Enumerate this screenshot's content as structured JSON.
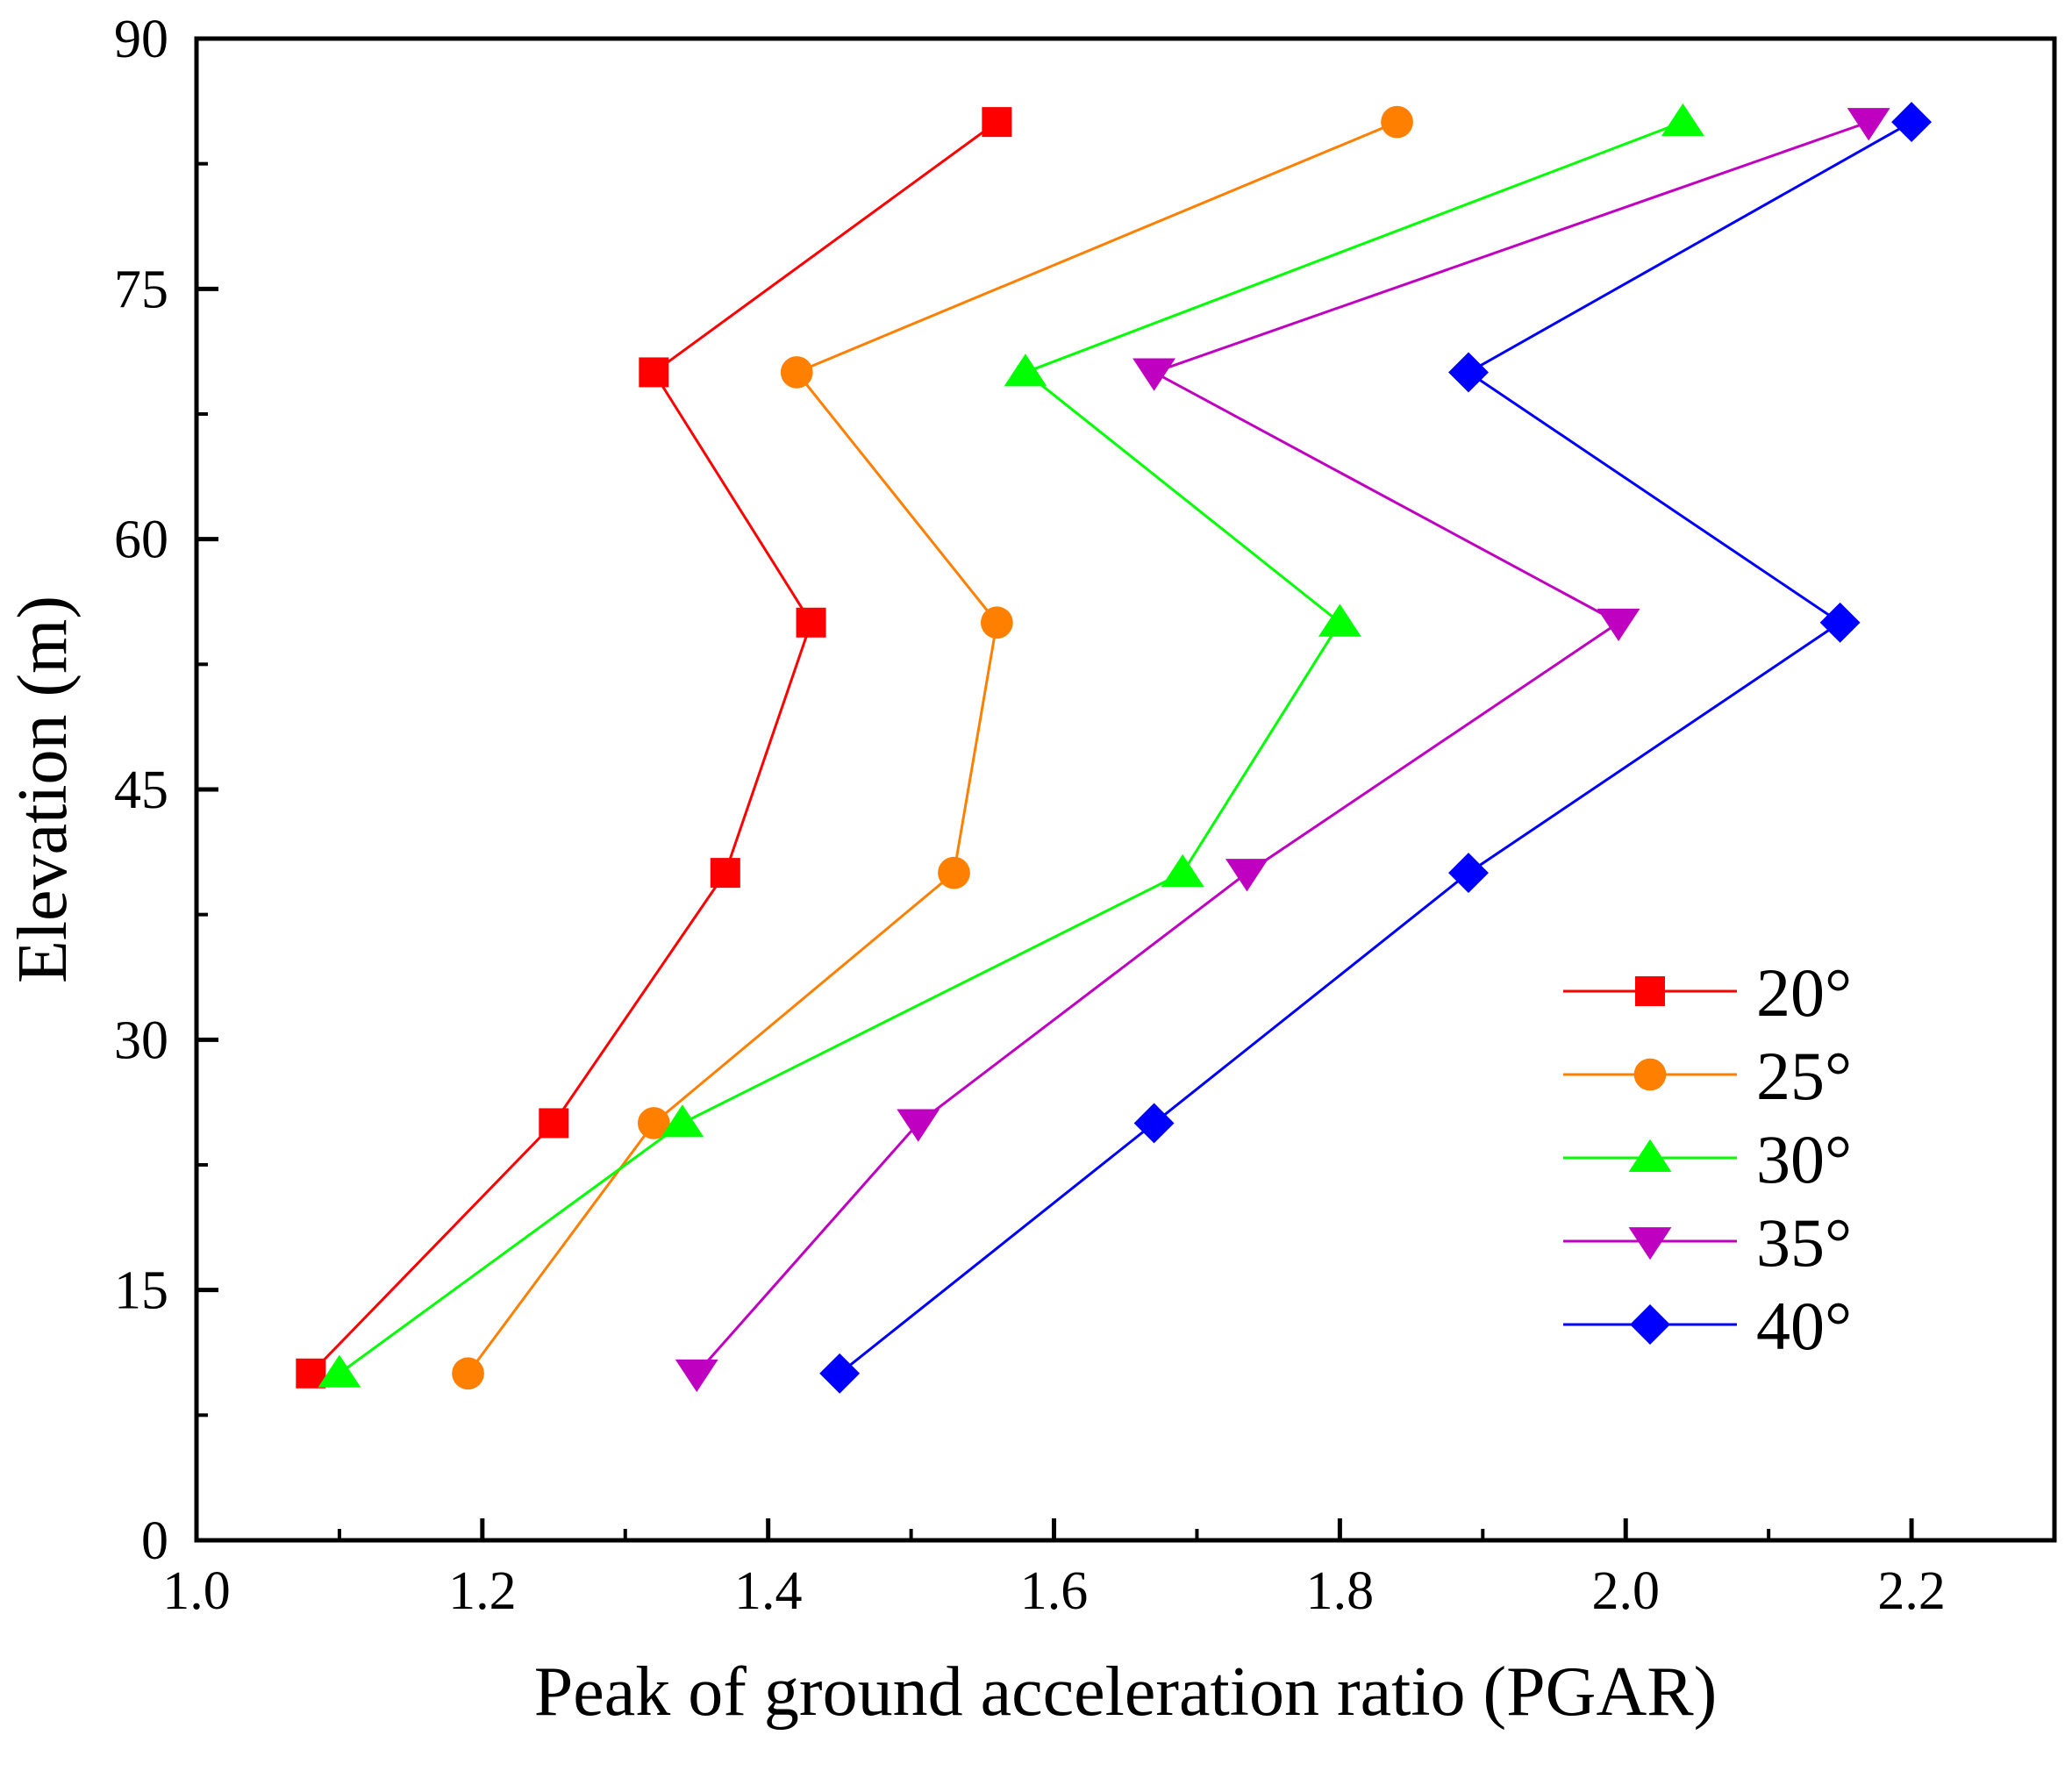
{
  "chart_data": {
    "type": "line",
    "title": "",
    "xlabel": "Peak of ground acceleration ratio (PGAR)",
    "ylabel": "Elevation (m)",
    "xlim": [
      1.0,
      2.3
    ],
    "ylim": [
      0,
      90
    ],
    "xticks": [
      1.0,
      1.2,
      1.4,
      1.6,
      1.8,
      2.0,
      2.2
    ],
    "xtick_labels": [
      "1.0",
      "1.2",
      "1.4",
      "1.6",
      "1.8",
      "2.0",
      "2.2"
    ],
    "yticks": [
      0,
      15,
      30,
      45,
      60,
      75,
      90
    ],
    "ytick_labels": [
      "0",
      "15",
      "30",
      "45",
      "60",
      "75",
      "90"
    ],
    "grid": false,
    "legend_position": "bottom-right",
    "y": [
      10,
      25,
      40,
      55,
      70,
      85
    ],
    "series": [
      {
        "name": "20°",
        "color": "#ff0000",
        "marker": "square",
        "x": [
          1.08,
          1.25,
          1.37,
          1.43,
          1.32,
          1.56
        ]
      },
      {
        "name": "25°",
        "color": "#ff8000",
        "marker": "circle",
        "x": [
          1.19,
          1.32,
          1.53,
          1.56,
          1.42,
          1.84
        ]
      },
      {
        "name": "30°",
        "color": "#00ff00",
        "marker": "triangle-up",
        "x": [
          1.1,
          1.34,
          1.69,
          1.8,
          1.58,
          2.04
        ]
      },
      {
        "name": "35°",
        "color": "#c000c0",
        "marker": "triangle-down",
        "x": [
          1.35,
          1.505,
          1.735,
          1.995,
          1.67,
          2.17
        ]
      },
      {
        "name": "40°",
        "color": "#0000ff",
        "marker": "diamond",
        "x": [
          1.45,
          1.67,
          1.89,
          2.15,
          1.89,
          2.2
        ]
      }
    ]
  }
}
